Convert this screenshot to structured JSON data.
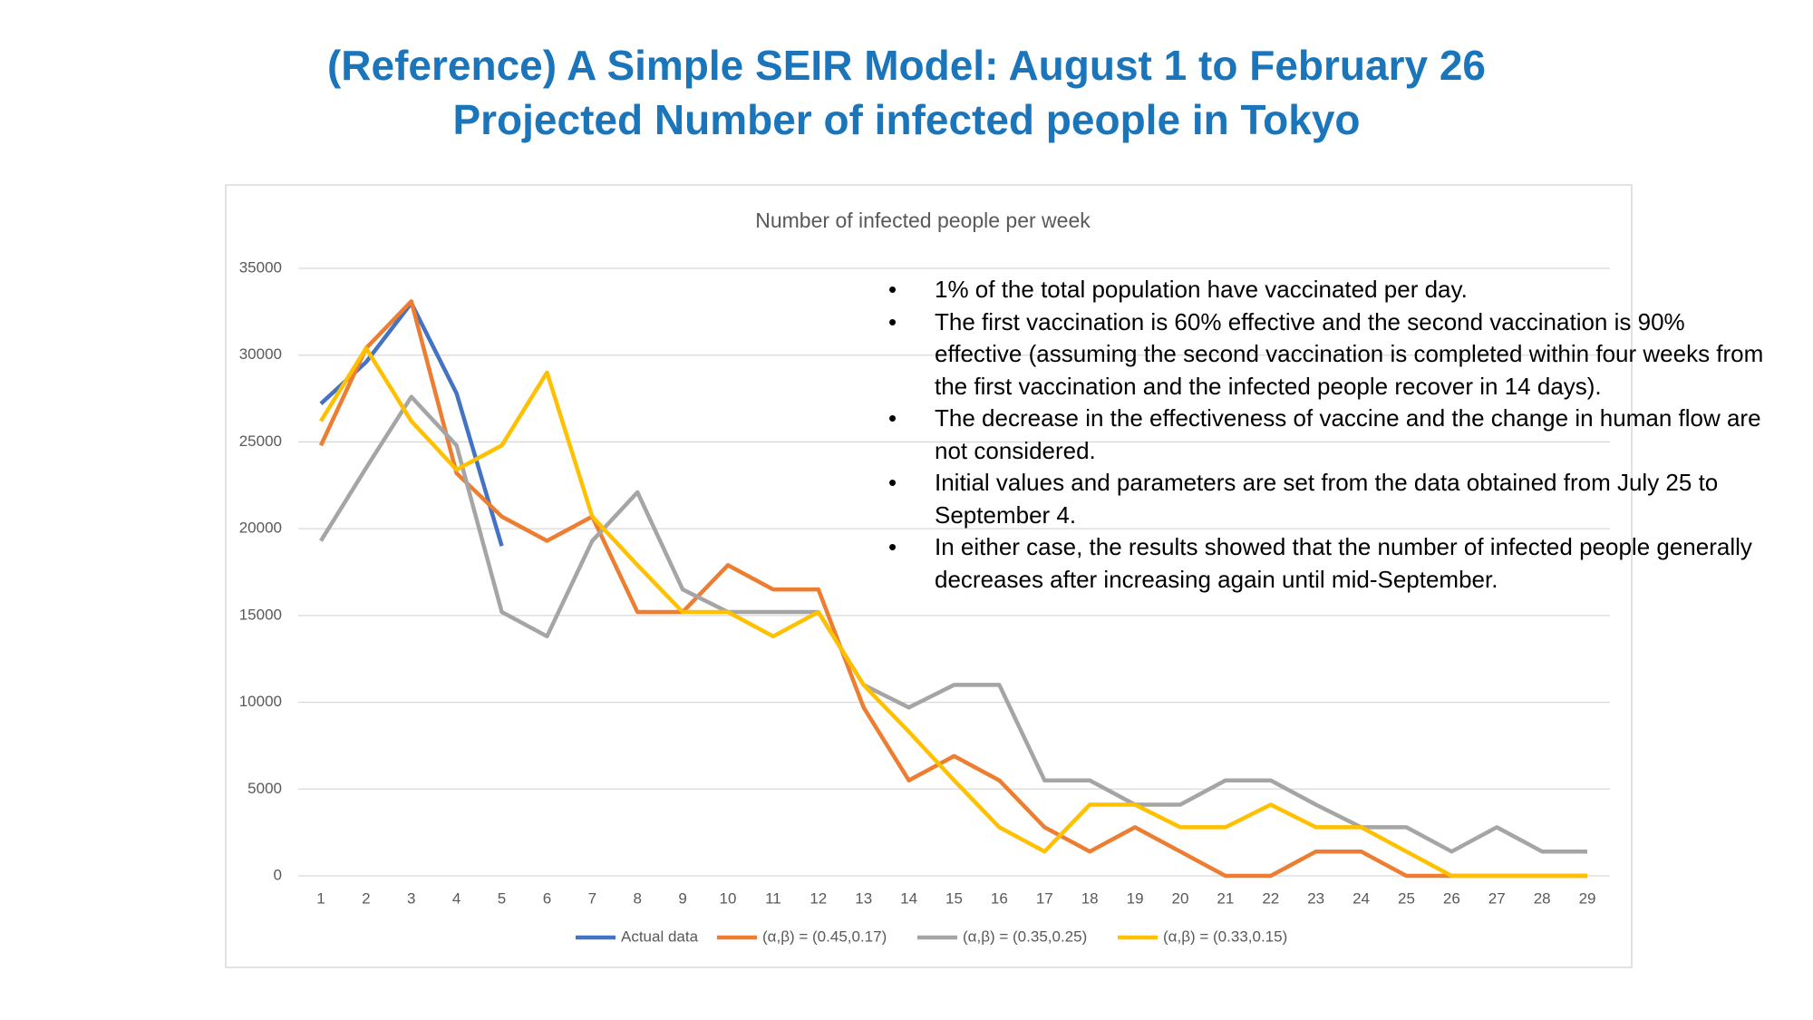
{
  "header": {
    "title_lines": [
      "(Reference) A Simple SEIR Model: August 1 to February 26",
      "Projected Number of infected people in Tokyo"
    ]
  },
  "notes": [
    "1% of the total population have vaccinated per day.",
    "The first vaccination is 60% effective and the second vaccination is 90% effective (assuming the second vaccination is completed within four weeks from the first vaccination and the infected people recover in 14 days).",
    "The decrease in the effectiveness of vaccine and the change in human flow are not considered.",
    " Initial values and parameters are set from the data obtained from July 25 to September 4.",
    " In either case, the results showed that the number of infected people generally decreases after increasing again until mid-September."
  ],
  "chart_data": {
    "type": "line",
    "title": "Number of infected people per week",
    "categories": [
      1,
      2,
      3,
      4,
      5,
      6,
      7,
      8,
      9,
      10,
      11,
      12,
      13,
      14,
      15,
      16,
      17,
      18,
      19,
      20,
      21,
      22,
      23,
      24,
      25,
      26,
      27,
      28,
      29
    ],
    "ylim": [
      0,
      35000
    ],
    "yticks": [
      0,
      5000,
      10000,
      15000,
      20000,
      25000,
      30000,
      35000
    ],
    "grid": true,
    "legend": "bottom",
    "series": [
      {
        "name": "Actual data",
        "color": "#4472c4",
        "values": [
          27200,
          29600,
          33000,
          27800,
          19000,
          null,
          null,
          null,
          null,
          null,
          null,
          null,
          null,
          null,
          null,
          null,
          null,
          null,
          null,
          null,
          null,
          null,
          null,
          null,
          null,
          null,
          null,
          null,
          null
        ]
      },
      {
        "name": "(α,β) = (0.45,0.17)",
        "color": "#ed7d31",
        "values": [
          24800,
          30400,
          33100,
          23200,
          20700,
          19300,
          20700,
          15200,
          15200,
          17900,
          16500,
          16500,
          9700,
          5500,
          6900,
          5500,
          2800,
          1400,
          2800,
          1400,
          0,
          0,
          1400,
          1400,
          0,
          0,
          0,
          0,
          0
        ]
      },
      {
        "name": "(α,β) = (0.35,0.25)",
        "color": "#a5a5a5",
        "values": [
          19300,
          23500,
          27600,
          24800,
          15200,
          13800,
          19300,
          22100,
          16500,
          15200,
          15200,
          15200,
          11000,
          9700,
          11000,
          11000,
          5500,
          5500,
          4100,
          4100,
          5500,
          5500,
          4100,
          2800,
          2800,
          1400,
          2800,
          1400,
          1400
        ]
      },
      {
        "name": "(α,β) = (0.33,0.15)",
        "color": "#ffc000",
        "values": [
          26200,
          30400,
          26200,
          23400,
          24800,
          29000,
          20700,
          17900,
          15200,
          15200,
          13800,
          15200,
          11000,
          8300,
          5500,
          2800,
          1400,
          4100,
          4100,
          2800,
          2800,
          4100,
          2800,
          2800,
          1400,
          0,
          0,
          0,
          0
        ]
      }
    ]
  }
}
